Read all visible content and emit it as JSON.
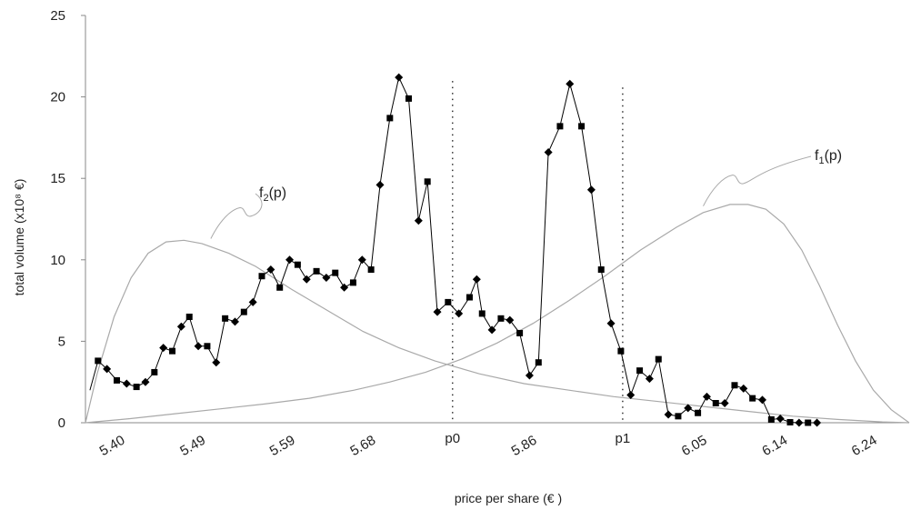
{
  "chart_data": {
    "type": "line",
    "xlabel": "price per share (€ )",
    "ylabel": "total volume (x10⁸ €)",
    "xlim": [
      5.36,
      6.28
    ],
    "ylim": [
      0,
      25
    ],
    "y_ticks": [
      0,
      5,
      10,
      15,
      20,
      25
    ],
    "x_ticks": [
      {
        "value": 5.4,
        "label": "5.40"
      },
      {
        "value": 5.49,
        "label": "5.49"
      },
      {
        "value": 5.59,
        "label": "5.59"
      },
      {
        "value": 5.68,
        "label": "5.68"
      },
      {
        "value": 5.77,
        "label": "p0"
      },
      {
        "value": 5.86,
        "label": "5.86"
      },
      {
        "value": 5.96,
        "label": "p1"
      },
      {
        "value": 6.05,
        "label": "6.05"
      },
      {
        "value": 6.14,
        "label": "6.14"
      },
      {
        "value": 6.24,
        "label": "6.24"
      }
    ],
    "reference_lines": [
      {
        "label": "p0",
        "x": 5.77,
        "y": 21.2
      },
      {
        "label": "p1",
        "x": 5.96,
        "y": 20.8
      }
    ],
    "series": [
      {
        "marker_color": "#000000",
        "points": [
          [
            5.365,
            2.0
          ],
          [
            5.374,
            3.8
          ],
          [
            5.384,
            3.3
          ],
          [
            5.395,
            2.6
          ],
          [
            5.406,
            2.4
          ],
          [
            5.417,
            2.2
          ],
          [
            5.427,
            2.5
          ],
          [
            5.437,
            3.1
          ],
          [
            5.447,
            4.6
          ],
          [
            5.457,
            4.4
          ],
          [
            5.467,
            5.9
          ],
          [
            5.476,
            6.5
          ],
          [
            5.486,
            4.7
          ],
          [
            5.496,
            4.7
          ],
          [
            5.506,
            3.7
          ],
          [
            5.516,
            6.4
          ],
          [
            5.527,
            6.2
          ],
          [
            5.537,
            6.8
          ],
          [
            5.547,
            7.4
          ],
          [
            5.557,
            9.0
          ],
          [
            5.567,
            9.4
          ],
          [
            5.577,
            8.3
          ],
          [
            5.588,
            10.0
          ],
          [
            5.597,
            9.7
          ],
          [
            5.607,
            8.8
          ],
          [
            5.618,
            9.3
          ],
          [
            5.629,
            8.9
          ],
          [
            5.639,
            9.2
          ],
          [
            5.649,
            8.3
          ],
          [
            5.659,
            8.6
          ],
          [
            5.669,
            10.0
          ],
          [
            5.679,
            9.4
          ],
          [
            5.689,
            14.6
          ],
          [
            5.7,
            18.7
          ],
          [
            5.71,
            21.2
          ],
          [
            5.721,
            19.9
          ],
          [
            5.732,
            12.4
          ],
          [
            5.742,
            14.8
          ],
          [
            5.753,
            6.8
          ],
          [
            5.765,
            7.4
          ],
          [
            5.777,
            6.7
          ],
          [
            5.789,
            7.7
          ],
          [
            5.797,
            8.8
          ],
          [
            5.803,
            6.7
          ],
          [
            5.814,
            5.7
          ],
          [
            5.824,
            6.4
          ],
          [
            5.834,
            6.3
          ],
          [
            5.845,
            5.5
          ],
          [
            5.856,
            2.9
          ],
          [
            5.866,
            3.7
          ],
          [
            5.877,
            16.6
          ],
          [
            5.89,
            18.2
          ],
          [
            5.901,
            20.8
          ],
          [
            5.914,
            18.2
          ],
          [
            5.925,
            14.3
          ],
          [
            5.936,
            9.4
          ],
          [
            5.947,
            6.1
          ],
          [
            5.958,
            4.4
          ],
          [
            5.969,
            1.7
          ],
          [
            5.979,
            3.2
          ],
          [
            5.99,
            2.7
          ],
          [
            6.0,
            3.9
          ],
          [
            6.011,
            0.5
          ],
          [
            6.022,
            0.4
          ],
          [
            6.033,
            0.9
          ],
          [
            6.044,
            0.6
          ],
          [
            6.054,
            1.6
          ],
          [
            6.064,
            1.2
          ],
          [
            6.074,
            1.2
          ],
          [
            6.085,
            2.3
          ],
          [
            6.095,
            2.1
          ],
          [
            6.105,
            1.5
          ],
          [
            6.116,
            1.4
          ],
          [
            6.126,
            0.2
          ],
          [
            6.136,
            0.25
          ],
          [
            6.147,
            0.03
          ],
          [
            6.157,
            0.0
          ],
          [
            6.167,
            0.0
          ],
          [
            6.177,
            0.0
          ]
        ]
      }
    ],
    "curves": [
      {
        "label_main": "f",
        "label_sub": "2",
        "label_suffix": "(p)",
        "color": "#a9a9a9",
        "points": [
          [
            5.36,
            0.0
          ],
          [
            5.373,
            3.0
          ],
          [
            5.392,
            6.5
          ],
          [
            5.411,
            8.9
          ],
          [
            5.43,
            10.4
          ],
          [
            5.45,
            11.1
          ],
          [
            5.47,
            11.2
          ],
          [
            5.49,
            11.0
          ],
          [
            5.52,
            10.4
          ],
          [
            5.55,
            9.6
          ],
          [
            5.59,
            8.2
          ],
          [
            5.63,
            6.9
          ],
          [
            5.67,
            5.6
          ],
          [
            5.71,
            4.6
          ],
          [
            5.75,
            3.8
          ],
          [
            5.8,
            3.0
          ],
          [
            5.85,
            2.4
          ],
          [
            5.9,
            2.0
          ],
          [
            5.95,
            1.6
          ],
          [
            6.0,
            1.3
          ],
          [
            6.05,
            1.0
          ],
          [
            6.1,
            0.7
          ],
          [
            6.15,
            0.4
          ],
          [
            6.2,
            0.2
          ],
          [
            6.25,
            0.05
          ],
          [
            6.28,
            0.0
          ]
        ]
      },
      {
        "label_main": "f",
        "label_sub": "1",
        "label_suffix": "(p)",
        "color": "#a9a9a9",
        "points": [
          [
            5.36,
            0.0
          ],
          [
            5.41,
            0.25
          ],
          [
            5.46,
            0.55
          ],
          [
            5.51,
            0.85
          ],
          [
            5.56,
            1.15
          ],
          [
            5.61,
            1.5
          ],
          [
            5.66,
            2.0
          ],
          [
            5.7,
            2.5
          ],
          [
            5.74,
            3.1
          ],
          [
            5.78,
            3.9
          ],
          [
            5.82,
            4.9
          ],
          [
            5.86,
            6.1
          ],
          [
            5.9,
            7.5
          ],
          [
            5.94,
            9.0
          ],
          [
            5.98,
            10.6
          ],
          [
            6.02,
            12.0
          ],
          [
            6.05,
            12.9
          ],
          [
            6.08,
            13.4
          ],
          [
            6.1,
            13.4
          ],
          [
            6.12,
            13.1
          ],
          [
            6.14,
            12.2
          ],
          [
            6.16,
            10.6
          ],
          [
            6.18,
            8.4
          ],
          [
            6.2,
            6.0
          ],
          [
            6.22,
            3.8
          ],
          [
            6.24,
            2.0
          ],
          [
            6.26,
            0.8
          ],
          [
            6.28,
            0.0
          ]
        ]
      }
    ]
  }
}
